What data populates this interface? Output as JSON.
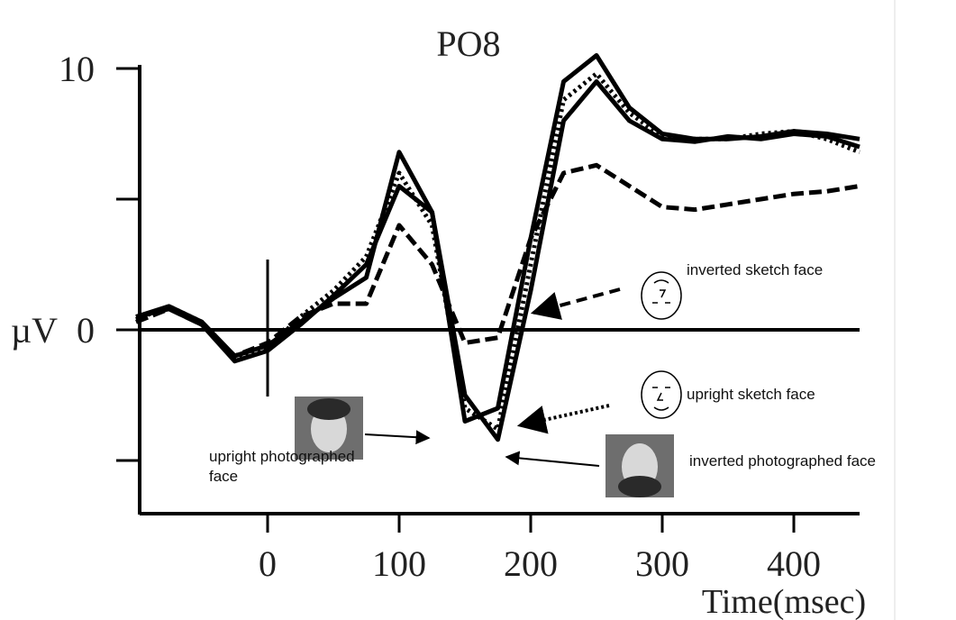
{
  "chart_data": {
    "type": "line",
    "title": "PO8",
    "xlabel": "Time(msec)",
    "ylabel": "µV",
    "x": [
      -100,
      -75,
      -50,
      -25,
      0,
      25,
      50,
      75,
      100,
      125,
      150,
      175,
      200,
      225,
      250,
      275,
      300,
      325,
      350,
      375,
      400,
      425,
      450
    ],
    "series": [
      {
        "name": "upright photographed face",
        "color": "#000000",
        "style": "solid",
        "values": [
          0.5,
          0.9,
          0.3,
          -1.0,
          -0.6,
          0.3,
          1.2,
          2.0,
          6.8,
          4.5,
          -3.5,
          -3.0,
          3.5,
          9.5,
          10.5,
          8.5,
          7.5,
          7.3,
          7.3,
          7.4,
          7.6,
          7.5,
          7.3
        ]
      },
      {
        "name": "inverted photographed face",
        "color": "#000000",
        "style": "solid",
        "values": [
          0.5,
          0.8,
          0.2,
          -1.2,
          -0.8,
          0.2,
          1.3,
          2.5,
          5.5,
          4.5,
          -2.5,
          -4.2,
          1.5,
          8.0,
          9.5,
          8.0,
          7.3,
          7.2,
          7.4,
          7.3,
          7.5,
          7.4,
          7.0
        ]
      },
      {
        "name": "upright sketch face",
        "color": "#000000",
        "style": "dotted",
        "values": [
          0.4,
          0.9,
          0.3,
          -1.1,
          -0.7,
          0.5,
          1.5,
          2.8,
          6.0,
          4.0,
          -3.0,
          -3.8,
          2.5,
          8.8,
          9.8,
          8.3,
          7.4,
          7.3,
          7.3,
          7.5,
          7.6,
          7.3,
          6.8
        ]
      },
      {
        "name": "inverted sketch face",
        "color": "#000000",
        "style": "dashed",
        "values": [
          0.3,
          0.8,
          0.2,
          -1.0,
          -0.5,
          0.5,
          1.0,
          1.0,
          4.0,
          2.5,
          -0.5,
          -0.3,
          3.5,
          6.0,
          6.3,
          5.5,
          4.7,
          4.6,
          4.8,
          5.0,
          5.2,
          5.3,
          5.5
        ]
      }
    ],
    "xlim": [
      -100,
      450
    ],
    "ylim": [
      -7,
      10
    ],
    "xticks": [
      0,
      100,
      200,
      300,
      400
    ],
    "yticks": [
      {
        "value": -5,
        "label": null
      },
      0,
      {
        "value": 5,
        "label": null
      },
      10
    ]
  }
}
